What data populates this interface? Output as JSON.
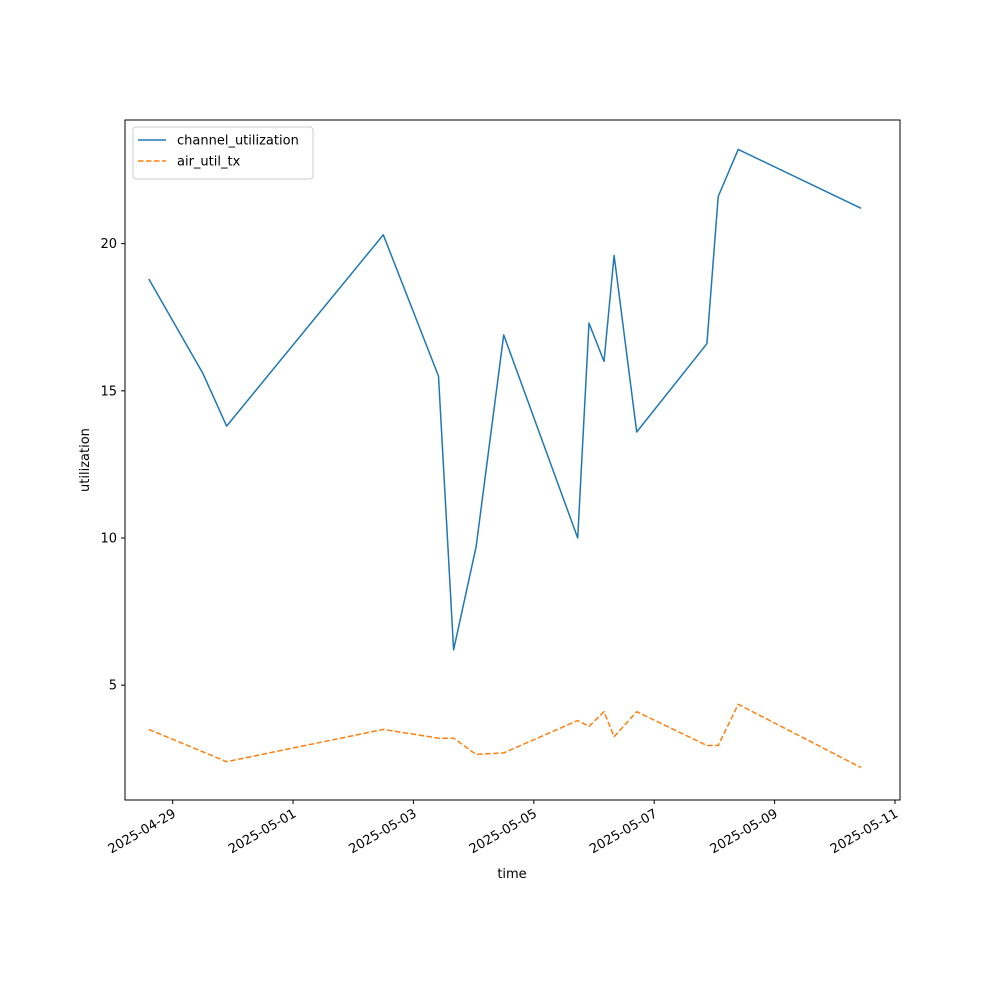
{
  "chart_data": {
    "type": "line",
    "xlabel": "time",
    "ylabel": "utilization",
    "x_axis_type": "datetime",
    "xlim": [
      "2025-04-28T05:00",
      "2025-05-11T02:00"
    ],
    "ylim": [
      1.1,
      24.2
    ],
    "x_ticks": [
      "2025-04-29",
      "2025-05-01",
      "2025-05-03",
      "2025-05-05",
      "2025-05-07",
      "2025-05-09",
      "2025-05-11"
    ],
    "y_ticks": [
      5,
      10,
      15,
      20
    ],
    "grid": false,
    "legend_position": "top-left",
    "series": [
      {
        "name": "channel_utilization",
        "color": "#1f77b4",
        "style": "solid",
        "points": [
          {
            "x": "2025-04-28T14:30",
            "y": 18.8
          },
          {
            "x": "2025-04-29T12:00",
            "y": 15.6
          },
          {
            "x": "2025-04-29T21:30",
            "y": 13.8
          },
          {
            "x": "2025-05-02T12:00",
            "y": 20.3
          },
          {
            "x": "2025-05-03T10:00",
            "y": 15.5
          },
          {
            "x": "2025-05-03T16:00",
            "y": 6.2
          },
          {
            "x": "2025-05-04T01:00",
            "y": 9.7
          },
          {
            "x": "2025-05-04T12:00",
            "y": 16.9
          },
          {
            "x": "2025-05-05T17:30",
            "y": 10.0
          },
          {
            "x": "2025-05-05T22:00",
            "y": 17.3
          },
          {
            "x": "2025-05-06T04:00",
            "y": 16.0
          },
          {
            "x": "2025-05-06T08:00",
            "y": 19.6
          },
          {
            "x": "2025-05-06T17:00",
            "y": 13.6
          },
          {
            "x": "2025-05-07T21:00",
            "y": 16.6
          },
          {
            "x": "2025-05-08T01:30",
            "y": 21.6
          },
          {
            "x": "2025-05-08T09:30",
            "y": 23.2
          },
          {
            "x": "2025-05-10T10:30",
            "y": 21.2
          }
        ]
      },
      {
        "name": "air_util_tx",
        "color": "#ff7f0e",
        "style": "dashed",
        "points": [
          {
            "x": "2025-04-28T14:30",
            "y": 3.5
          },
          {
            "x": "2025-04-29T21:30",
            "y": 2.4
          },
          {
            "x": "2025-05-02T12:00",
            "y": 3.5
          },
          {
            "x": "2025-05-03T10:00",
            "y": 3.2
          },
          {
            "x": "2025-05-03T16:00",
            "y": 3.2
          },
          {
            "x": "2025-05-04T01:00",
            "y": 2.65
          },
          {
            "x": "2025-05-04T12:00",
            "y": 2.7
          },
          {
            "x": "2025-05-05T17:30",
            "y": 3.8
          },
          {
            "x": "2025-05-05T22:00",
            "y": 3.6
          },
          {
            "x": "2025-05-06T04:00",
            "y": 4.1
          },
          {
            "x": "2025-05-06T08:00",
            "y": 3.25
          },
          {
            "x": "2025-05-06T17:00",
            "y": 4.1
          },
          {
            "x": "2025-05-07T21:00",
            "y": 2.95
          },
          {
            "x": "2025-05-08T01:30",
            "y": 2.95
          },
          {
            "x": "2025-05-08T09:30",
            "y": 4.35
          },
          {
            "x": "2025-05-10T10:30",
            "y": 2.2
          }
        ]
      }
    ]
  }
}
